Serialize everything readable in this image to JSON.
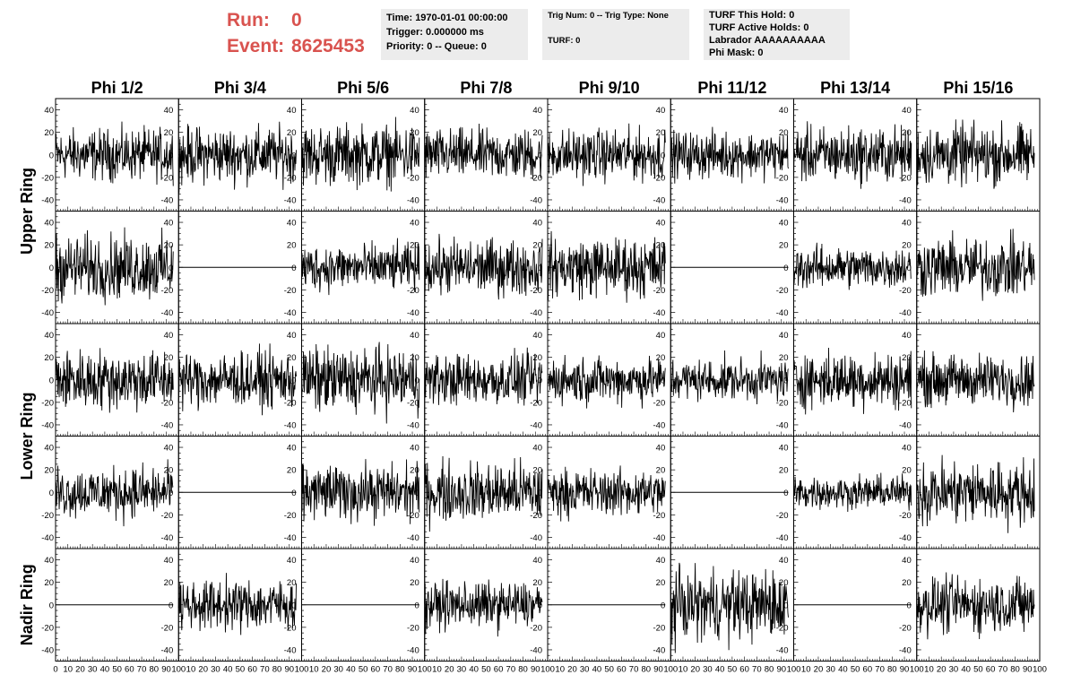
{
  "header": {
    "run_label": "Run:",
    "run_value": "0",
    "event_label": "Event:",
    "event_value": "8625453"
  },
  "info_time": {
    "time": "Time: 1970-01-01 00:00:00",
    "trigger": "Trigger: 0.000000 ms",
    "priority": "Priority: 0 -- Queue: 0"
  },
  "info_trig": {
    "trig": "Trig Num: 0 -- Trig Type: None",
    "turf": "TURF: 0"
  },
  "info_turf": {
    "hold": "TURF This Hold: 0",
    "active": "TURF Active Holds: 0",
    "labrador": "Labrador AAAAAAAAAA",
    "phimask": "Phi Mask: 0"
  },
  "chart_data": {
    "type": "line",
    "columns": [
      "Phi 1/2",
      "Phi 3/4",
      "Phi 5/6",
      "Phi 7/8",
      "Phi 9/10",
      "Phi 11/12",
      "Phi 13/14",
      "Phi 15/16"
    ],
    "row_groups": [
      {
        "label": "Upper Ring",
        "rows": 2
      },
      {
        "label": "Lower Ring",
        "rows": 2
      },
      {
        "label": "Nadir Ring",
        "rows": 1
      }
    ],
    "xlim": [
      0,
      100
    ],
    "ylim": [
      -50,
      50
    ],
    "y_ticks": [
      -40,
      -20,
      0,
      20,
      40
    ],
    "x_tick_labels_first": [
      "0",
      "10",
      "20",
      "30",
      "40",
      "50",
      "60",
      "70",
      "80",
      "90",
      "100"
    ],
    "x_tick_labels": [
      "10",
      "20",
      "30",
      "40",
      "50",
      "60",
      "70",
      "80",
      "90",
      "100"
    ],
    "samples": 260,
    "flat_panels": [
      [
        1,
        1
      ],
      [
        1,
        5
      ],
      [
        3,
        1
      ],
      [
        3,
        5
      ],
      [
        4,
        0
      ],
      [
        4,
        2
      ],
      [
        4,
        4
      ],
      [
        4,
        6
      ]
    ],
    "amplitudes": [
      [
        11,
        12,
        13,
        11,
        11,
        10,
        12,
        13
      ],
      [
        14,
        0,
        10,
        12,
        13,
        0,
        9,
        13
      ],
      [
        13,
        12,
        14,
        11,
        10,
        9,
        12,
        11
      ],
      [
        11,
        0,
        12,
        13,
        10,
        0,
        7,
        14
      ],
      [
        0,
        11,
        0,
        10,
        0,
        15,
        0,
        12
      ]
    ],
    "line_color": "#000000"
  }
}
